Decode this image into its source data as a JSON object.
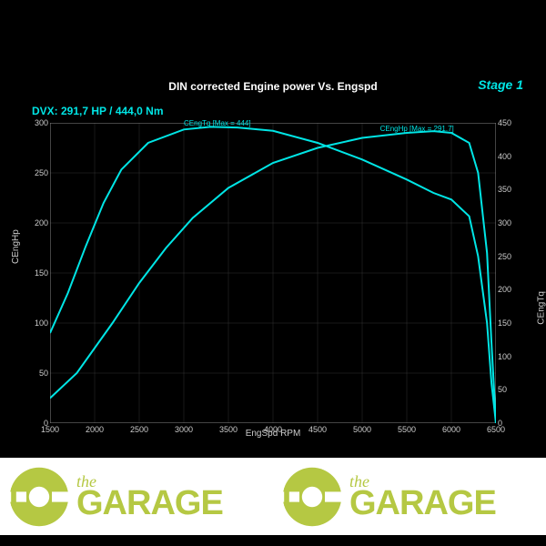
{
  "chart": {
    "type": "line",
    "title": "DIN corrected Engine power Vs. Engspd",
    "stage_label": "Stage 1",
    "subtitle": "DVX:  291,7 HP / 444,0 Nm",
    "x_label": "EngSpd RPM",
    "y_left_label": "CEngHp",
    "y_right_label": "CEngTq",
    "xlim": [
      1500,
      6500
    ],
    "xtick_step": 500,
    "y_left_lim": [
      0,
      300
    ],
    "y_left_tick_step": 50,
    "y_right_lim": [
      0,
      450
    ],
    "y_right_tick_step": 50,
    "background_color": "#000000",
    "grid_color": "#333333",
    "line_color": "#00e5e5",
    "line_width": 2,
    "series": {
      "hp": {
        "label": "CEngHp [Max = 291.7]",
        "axis": "left",
        "points": [
          [
            1500,
            25
          ],
          [
            1800,
            50
          ],
          [
            2000,
            75
          ],
          [
            2200,
            100
          ],
          [
            2500,
            140
          ],
          [
            2800,
            175
          ],
          [
            3100,
            205
          ],
          [
            3500,
            235
          ],
          [
            4000,
            260
          ],
          [
            4500,
            275
          ],
          [
            5000,
            285
          ],
          [
            5500,
            290
          ],
          [
            5800,
            291.7
          ],
          [
            6000,
            290
          ],
          [
            6200,
            280
          ],
          [
            6300,
            250
          ],
          [
            6400,
            170
          ],
          [
            6450,
            80
          ],
          [
            6500,
            0
          ]
        ]
      },
      "tq": {
        "label": "CEngTq [Max = 444]",
        "axis": "right",
        "points": [
          [
            1500,
            135
          ],
          [
            1700,
            195
          ],
          [
            1900,
            265
          ],
          [
            2100,
            330
          ],
          [
            2300,
            380
          ],
          [
            2600,
            420
          ],
          [
            3000,
            440
          ],
          [
            3300,
            444
          ],
          [
            3600,
            443
          ],
          [
            4000,
            438
          ],
          [
            4500,
            420
          ],
          [
            5000,
            395
          ],
          [
            5500,
            365
          ],
          [
            5800,
            345
          ],
          [
            6000,
            335
          ],
          [
            6200,
            310
          ],
          [
            6300,
            250
          ],
          [
            6400,
            150
          ],
          [
            6450,
            60
          ],
          [
            6500,
            0
          ]
        ]
      }
    }
  },
  "footer": {
    "logo_the": "the",
    "logo_garage": "GARAGE",
    "logo_color": "#b5c843",
    "background_color": "#ffffff"
  }
}
